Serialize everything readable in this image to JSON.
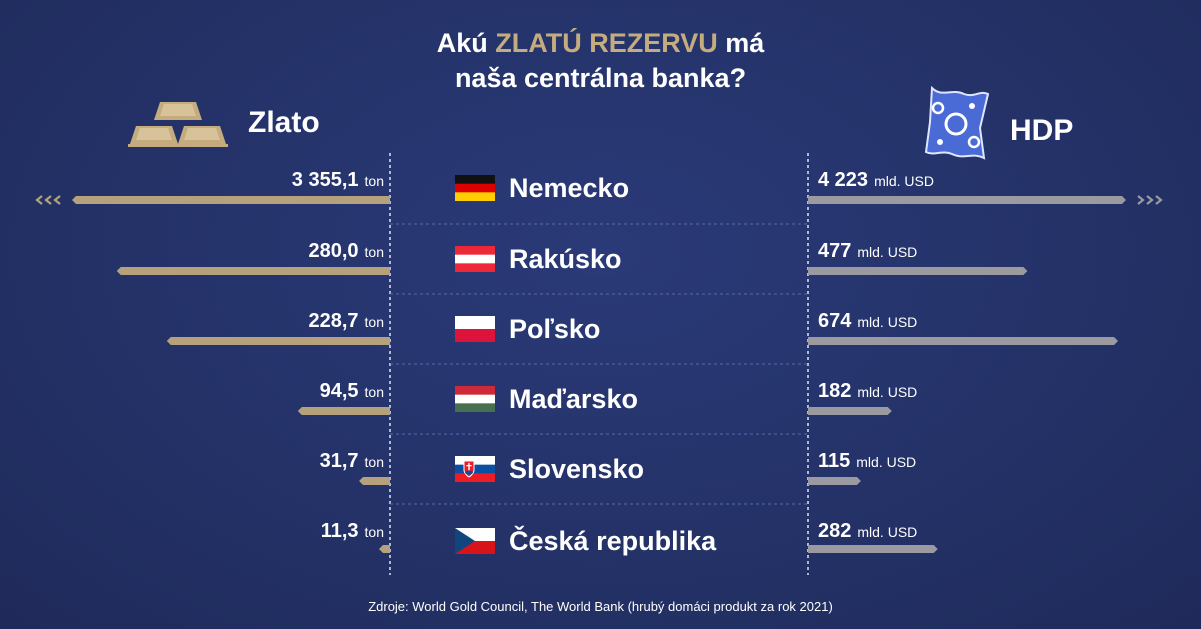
{
  "title": {
    "line1_prefix": "Akú ",
    "line1_highlight": "ZLATÚ REZERVU",
    "line1_suffix": " má",
    "line2": "naša centrálna banka?"
  },
  "left_label": "Zlato",
  "right_label": "HDP",
  "gold_unit": "ton",
  "gdp_unit": "mld. USD",
  "source": "Zdroje: World Gold Council, The World Bank (hrubý domáci produkt za rok 2021)",
  "icons": {
    "left": "gold-bars-icon",
    "right": "banknote-icon"
  },
  "colors": {
    "gold": "#b5a27d",
    "gdp": "#9a9aa0",
    "highlight": "#c5ac7f"
  },
  "chart_data": {
    "type": "bar",
    "categories": [
      "Nemecko",
      "Rakúsko",
      "Poľsko",
      "Maďarsko",
      "Slovensko",
      "Česká republika"
    ],
    "series": [
      {
        "name": "Zlato",
        "unit": "ton",
        "values": [
          3355.1,
          280.0,
          228.7,
          94.5,
          31.7,
          11.3
        ],
        "labels": [
          "3 355,1",
          "280,0",
          "228,7",
          "94,5",
          "31,7",
          "11,3"
        ],
        "truncated": [
          true,
          false,
          false,
          false,
          false,
          false
        ]
      },
      {
        "name": "HDP",
        "unit": "mld. USD",
        "values": [
          4223,
          477,
          674,
          182,
          115,
          282
        ],
        "labels": [
          "4 223",
          "477",
          "674",
          "182",
          "115",
          "282"
        ],
        "truncated": [
          true,
          false,
          false,
          false,
          false,
          false
        ]
      }
    ]
  }
}
